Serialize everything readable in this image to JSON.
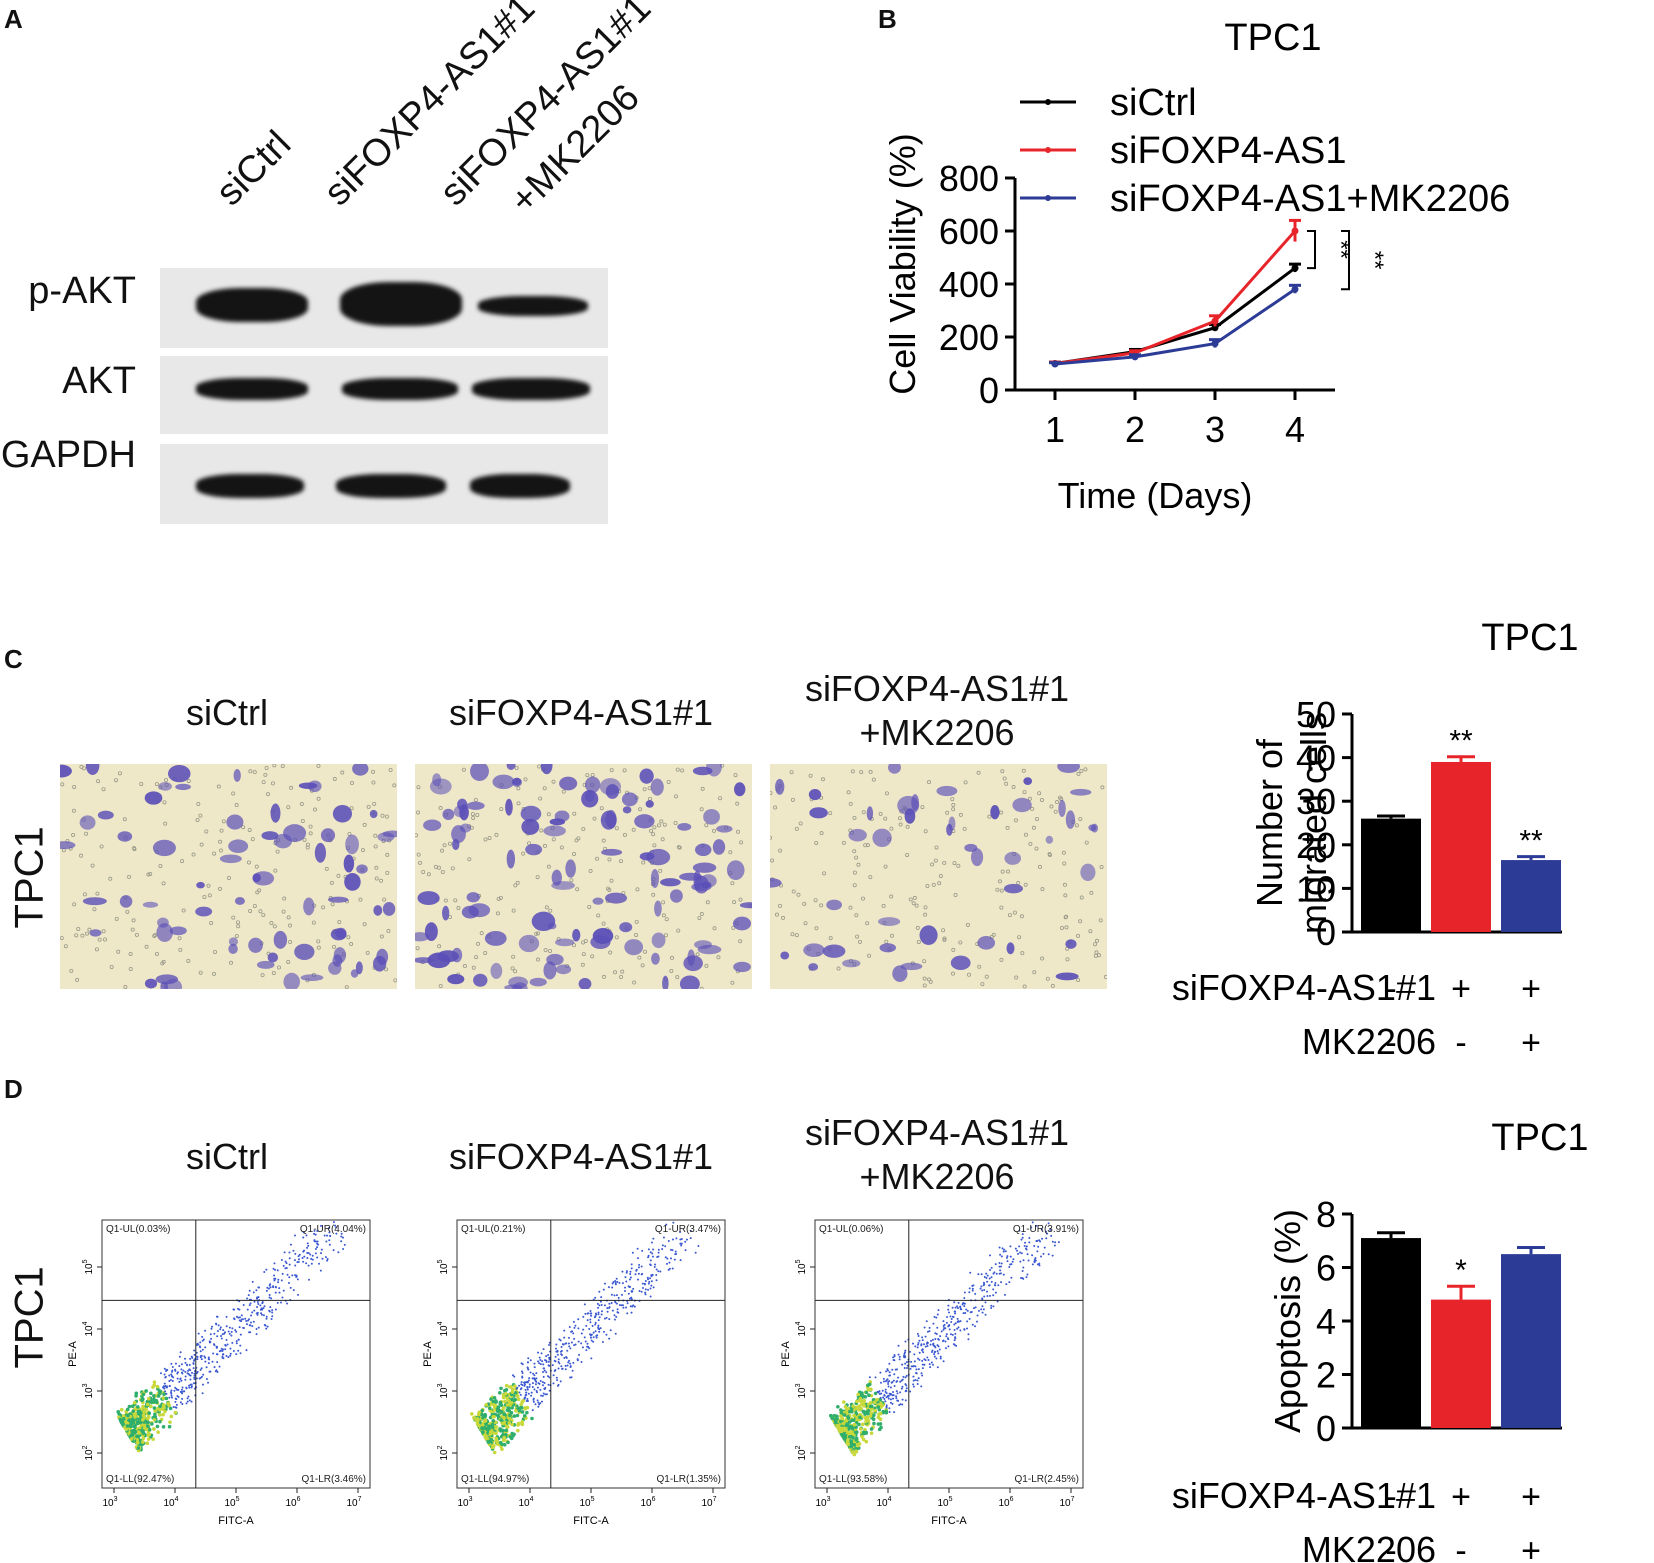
{
  "panels": {
    "A": {
      "letter": "A",
      "columns": [
        "siCtrl",
        "siFOXP4-AS1#1",
        "siFOXP4-AS1#1",
        "+MK2206"
      ],
      "rows": [
        "p-AKT",
        "AKT",
        "GAPDH"
      ]
    },
    "B": {
      "letter": "B"
    },
    "C": {
      "letter": "C",
      "side_label": "TPC1",
      "image_titles": [
        "siCtrl",
        "siFOXP4-AS1#1",
        "siFOXP4-AS1#1",
        "+MK2206"
      ]
    },
    "D": {
      "letter": "D",
      "side_label": "TPC1",
      "image_titles": [
        "siCtrl",
        "siFOXP4-AS1#1",
        "siFOXP4-AS1#1",
        "+MK2206"
      ],
      "flow_plots": [
        {
          "ul": "Q1-UL(0.03%)",
          "ur": "Q1-UR(4.04%)",
          "ll": "Q1-LL(92.47%)",
          "lr": "Q1-LR(3.46%)"
        },
        {
          "ul": "Q1-UL(0.21%)",
          "ur": "Q1-UR(3.47%)",
          "ll": "Q1-LL(94.97%)",
          "lr": "Q1-LR(1.35%)"
        },
        {
          "ul": "Q1-UL(0.06%)",
          "ur": "Q1-UR(3.91%)",
          "ll": "Q1-LL(93.58%)",
          "lr": "Q1-LR(2.45%)"
        }
      ],
      "flow_xlabel": "FITC-A",
      "flow_ylabel": "PE-A",
      "flow_ticks": [
        "3",
        "4",
        "5",
        "6",
        "7"
      ],
      "flow_yticks": [
        "2",
        "3",
        "4",
        "5"
      ]
    }
  },
  "colors": {
    "black": "#000000",
    "red": "#e8242b",
    "blue": "#2c3b96"
  },
  "chart_data": [
    {
      "type": "line",
      "title": "TPC1",
      "xlabel": "Time (Days)",
      "ylabel": "Cell Viability (%)",
      "x": [
        1,
        2,
        3,
        4
      ],
      "xlim": [
        0.5,
        4.5
      ],
      "ylim": [
        0,
        800
      ],
      "yticks": [
        0,
        200,
        400,
        600,
        800
      ],
      "series": [
        {
          "name": "siCtrl",
          "color": "#000000",
          "values": [
            100,
            145,
            235,
            460
          ],
          "errors": [
            5,
            8,
            12,
            15
          ]
        },
        {
          "name": "siFOXP4-AS1",
          "color": "#e8242b",
          "values": [
            100,
            140,
            260,
            600
          ],
          "errors": [
            5,
            8,
            20,
            40
          ]
        },
        {
          "name": "siFOXP4-AS1+MK2206",
          "color": "#2c3b96",
          "values": [
            98,
            125,
            175,
            380
          ],
          "errors": [
            5,
            8,
            15,
            15
          ]
        }
      ],
      "annotations": [
        "**",
        "**"
      ],
      "legend": "top-right"
    },
    {
      "type": "bar",
      "title": "TPC1",
      "ylabel": "Number of migrated cells",
      "ylim": [
        0,
        50
      ],
      "yticks": [
        0,
        10,
        20,
        30,
        40,
        50
      ],
      "values": [
        26,
        39,
        16.5
      ],
      "errors": [
        0.6,
        1.2,
        0.8
      ],
      "colors": [
        "#000000",
        "#e8242b",
        "#2c3b96"
      ],
      "significance": [
        "",
        "**",
        "**"
      ],
      "conditions": [
        {
          "label": "siFOXP4-AS1#1",
          "marks": [
            "-",
            "+",
            "+"
          ]
        },
        {
          "label": "MK2206",
          "marks": [
            "-",
            "-",
            "+"
          ]
        }
      ]
    },
    {
      "type": "bar",
      "title": "TPC1",
      "ylabel": "Apoptosis (%)",
      "ylim": [
        0,
        8
      ],
      "yticks": [
        0,
        2,
        4,
        6,
        8
      ],
      "values": [
        7.1,
        4.8,
        6.5
      ],
      "errors": [
        0.2,
        0.5,
        0.25
      ],
      "colors": [
        "#000000",
        "#e8242b",
        "#2c3b96"
      ],
      "significance": [
        "",
        "*",
        ""
      ],
      "conditions": [
        {
          "label": "siFOXP4-AS1#1",
          "marks": [
            "-",
            "+",
            "+"
          ]
        },
        {
          "label": "MK2206",
          "marks": [
            "-",
            "-",
            "+"
          ]
        }
      ]
    }
  ]
}
